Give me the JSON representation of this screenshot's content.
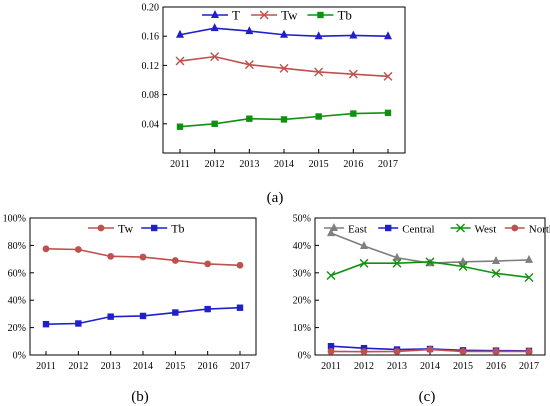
{
  "figure": {
    "captions": [
      "(a)",
      "(b)",
      "(c)"
    ]
  },
  "chart_data": [
    {
      "panel": "a",
      "type": "line",
      "x": [
        "2011",
        "2012",
        "2013",
        "2014",
        "2015",
        "2016",
        "2017"
      ],
      "series": [
        {
          "name": "T",
          "marker": "triangle",
          "color": "#1f1fcc",
          "values": [
            0.162,
            0.171,
            0.167,
            0.162,
            0.16,
            0.161,
            0.16
          ]
        },
        {
          "name": "Tw",
          "marker": "x",
          "color": "#c0504d",
          "values": [
            0.126,
            0.132,
            0.121,
            0.116,
            0.111,
            0.108,
            0.105
          ]
        },
        {
          "name": "Tb",
          "marker": "square",
          "color": "#109010",
          "values": [
            0.036,
            0.04,
            0.047,
            0.046,
            0.05,
            0.054,
            0.055
          ]
        }
      ],
      "ylim": [
        0.0,
        0.2
      ],
      "yticks": [
        "0.04",
        "0.08",
        "0.12",
        "0.16",
        "0.20"
      ],
      "legend": "top-center",
      "grid": false,
      "xlabel": "",
      "ylabel": ""
    },
    {
      "panel": "b",
      "type": "line",
      "x": [
        "2011",
        "2012",
        "2013",
        "2014",
        "2015",
        "2016",
        "2017"
      ],
      "series": [
        {
          "name": "Tw",
          "marker": "circle",
          "color": "#c0504d",
          "values": [
            77.5,
            77.0,
            72.0,
            71.5,
            69.0,
            66.5,
            65.5
          ]
        },
        {
          "name": "Tb",
          "marker": "square",
          "color": "#1f1fcc",
          "values": [
            22.5,
            23.0,
            28.0,
            28.5,
            31.0,
            33.5,
            34.5
          ]
        }
      ],
      "ylim": [
        0,
        100
      ],
      "yticks": [
        "0%",
        "20%",
        "40%",
        "60%",
        "80%",
        "100%"
      ],
      "legend": "top-center",
      "grid": false,
      "xlabel": "",
      "ylabel": ""
    },
    {
      "panel": "c",
      "type": "line",
      "x": [
        "2011",
        "2012",
        "2013",
        "2014",
        "2015",
        "2016",
        "2017"
      ],
      "series": [
        {
          "name": "East",
          "marker": "triangle",
          "color": "#7f7f7f",
          "values": [
            44.5,
            39.8,
            35.5,
            33.5,
            34.0,
            34.3,
            34.7
          ]
        },
        {
          "name": "Central",
          "marker": "square",
          "color": "#1f1fcc",
          "values": [
            3.2,
            2.5,
            2.0,
            2.2,
            1.7,
            1.6,
            1.5
          ]
        },
        {
          "name": "West",
          "marker": "x",
          "color": "#109010",
          "values": [
            29.0,
            33.5,
            33.5,
            34.0,
            32.3,
            29.8,
            28.3
          ]
        },
        {
          "name": "Northeast",
          "marker": "circle",
          "color": "#c0504d",
          "values": [
            1.3,
            1.2,
            1.3,
            2.0,
            1.3,
            1.3,
            1.3
          ]
        }
      ],
      "ylim": [
        0,
        50
      ],
      "yticks": [
        "0%",
        "10%",
        "20%",
        "30%",
        "40%",
        "50%"
      ],
      "legend": "top",
      "grid": false,
      "xlabel": "",
      "ylabel": ""
    }
  ]
}
